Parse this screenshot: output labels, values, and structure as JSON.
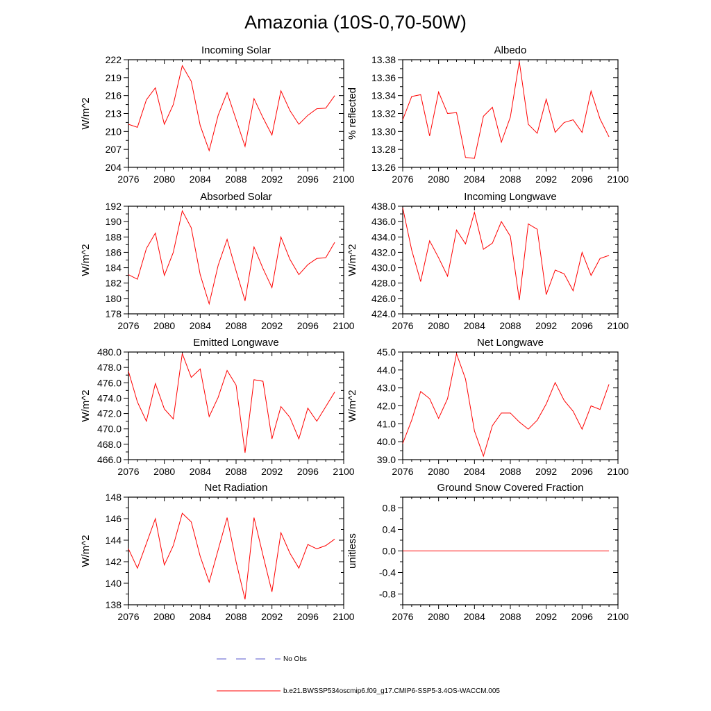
{
  "figure_title": "Amazonia (10S-0,70-50W)",
  "legend": {
    "obs_label": "No Obs",
    "obs_color": "#5555cc",
    "model_label": "b.e21.BWSSP534oscmip6.f09_g17.CMIP6-SSP5-3.4OS-WACCM.005",
    "model_color": "#ff0000"
  },
  "chart_data": [
    {
      "type": "line",
      "title": "Incoming Solar",
      "ylabel": "W/m^2",
      "xlim": [
        2076,
        2100
      ],
      "ylim": [
        204,
        222
      ],
      "xticks": [
        "2076",
        "2080",
        "2084",
        "2088",
        "2092",
        "2096",
        "2100"
      ],
      "yticks": [
        "204",
        "207",
        "210",
        "213",
        "216",
        "219",
        "222"
      ],
      "ytick_values": [
        204,
        207,
        210,
        213,
        216,
        219,
        222
      ],
      "x": [
        2076,
        2077,
        2078,
        2079,
        2080,
        2081,
        2082,
        2083,
        2084,
        2085,
        2086,
        2087,
        2088,
        2089,
        2090,
        2091,
        2092,
        2093,
        2094,
        2095,
        2096,
        2097,
        2098,
        2099
      ],
      "values": [
        211.2,
        210.7,
        215.3,
        217.3,
        211.2,
        214.5,
        221.0,
        218.4,
        211.0,
        206.8,
        212.7,
        216.5,
        212.0,
        207.5,
        215.5,
        212.3,
        209.4,
        216.8,
        213.5,
        211.2,
        212.7,
        213.8,
        213.9,
        216.0
      ]
    },
    {
      "type": "line",
      "title": "Albedo",
      "ylabel": "% reflected",
      "xlim": [
        2076,
        2100
      ],
      "ylim": [
        13.26,
        13.38
      ],
      "xticks": [
        "2076",
        "2080",
        "2084",
        "2088",
        "2092",
        "2096",
        "2100"
      ],
      "yticks": [
        "13.26",
        "13.28",
        "13.30",
        "13.32",
        "13.34",
        "13.36",
        "13.38"
      ],
      "ytick_values": [
        13.26,
        13.28,
        13.3,
        13.32,
        13.34,
        13.36,
        13.38
      ],
      "x": [
        2076,
        2077,
        2078,
        2079,
        2080,
        2081,
        2082,
        2083,
        2084,
        2085,
        2086,
        2087,
        2088,
        2089,
        2090,
        2091,
        2092,
        2093,
        2094,
        2095,
        2096,
        2097,
        2098,
        2099
      ],
      "values": [
        13.313,
        13.339,
        13.341,
        13.295,
        13.344,
        13.32,
        13.321,
        13.271,
        13.27,
        13.317,
        13.327,
        13.288,
        13.316,
        13.378,
        13.308,
        13.298,
        13.336,
        13.299,
        13.31,
        13.313,
        13.299,
        13.345,
        13.314,
        13.294
      ]
    },
    {
      "type": "line",
      "title": "Absorbed Solar",
      "ylabel": "W/m^2",
      "xlim": [
        2076,
        2100
      ],
      "ylim": [
        178,
        192
      ],
      "xticks": [
        "2076",
        "2080",
        "2084",
        "2088",
        "2092",
        "2096",
        "2100"
      ],
      "yticks": [
        "178",
        "180",
        "182",
        "184",
        "186",
        "188",
        "190",
        "192"
      ],
      "ytick_values": [
        178,
        180,
        182,
        184,
        186,
        188,
        190,
        192
      ],
      "x": [
        2076,
        2077,
        2078,
        2079,
        2080,
        2081,
        2082,
        2083,
        2084,
        2085,
        2086,
        2087,
        2088,
        2089,
        2090,
        2091,
        2092,
        2093,
        2094,
        2095,
        2096,
        2097,
        2098,
        2099
      ],
      "values": [
        183.1,
        182.5,
        186.5,
        188.5,
        183.0,
        186.0,
        191.4,
        189.2,
        183.1,
        179.3,
        184.3,
        187.7,
        183.6,
        179.7,
        186.7,
        183.9,
        181.4,
        188.0,
        185.1,
        183.1,
        184.4,
        185.2,
        185.3,
        187.3
      ]
    },
    {
      "type": "line",
      "title": "Incoming Longwave",
      "ylabel": "W/m^2",
      "xlim": [
        2076,
        2100
      ],
      "ylim": [
        424.0,
        438.0
      ],
      "xticks": [
        "2076",
        "2080",
        "2084",
        "2088",
        "2092",
        "2096",
        "2100"
      ],
      "yticks": [
        "424.0",
        "426.0",
        "428.0",
        "430.0",
        "432.0",
        "434.0",
        "436.0",
        "438.0"
      ],
      "ytick_values": [
        424,
        426,
        428,
        430,
        432,
        434,
        436,
        438
      ],
      "x": [
        2076,
        2077,
        2078,
        2079,
        2080,
        2081,
        2082,
        2083,
        2084,
        2085,
        2086,
        2087,
        2088,
        2089,
        2090,
        2091,
        2092,
        2093,
        2094,
        2095,
        2096,
        2097,
        2098,
        2099
      ],
      "values": [
        437.8,
        432.3,
        428.2,
        433.5,
        431.3,
        428.9,
        434.9,
        433.1,
        437.2,
        432.4,
        433.2,
        436.0,
        434.1,
        425.8,
        435.7,
        435.0,
        426.5,
        429.7,
        429.2,
        427.0,
        432.0,
        429.0,
        431.2,
        431.6
      ]
    },
    {
      "type": "line",
      "title": "Emitted Longwave",
      "ylabel": "W/m^2",
      "xlim": [
        2076,
        2100
      ],
      "ylim": [
        466.0,
        480.0
      ],
      "xticks": [
        "2076",
        "2080",
        "2084",
        "2088",
        "2092",
        "2096",
        "2100"
      ],
      "yticks": [
        "466.0",
        "468.0",
        "470.0",
        "472.0",
        "474.0",
        "476.0",
        "478.0",
        "480.0"
      ],
      "ytick_values": [
        466,
        468,
        470,
        472,
        474,
        476,
        478,
        480
      ],
      "x": [
        2076,
        2077,
        2078,
        2079,
        2080,
        2081,
        2082,
        2083,
        2084,
        2085,
        2086,
        2087,
        2088,
        2089,
        2090,
        2091,
        2092,
        2093,
        2094,
        2095,
        2096,
        2097,
        2098,
        2099
      ],
      "values": [
        477.5,
        473.5,
        471.0,
        475.9,
        472.6,
        471.3,
        479.8,
        476.7,
        477.8,
        471.6,
        474.1,
        477.6,
        475.7,
        466.9,
        476.4,
        476.2,
        468.7,
        472.9,
        471.5,
        468.7,
        472.7,
        471.0,
        472.9,
        474.8
      ]
    },
    {
      "type": "line",
      "title": "Net Longwave",
      "ylabel": "W/m^2",
      "xlim": [
        2076,
        2100
      ],
      "ylim": [
        39.0,
        45.0
      ],
      "xticks": [
        "2076",
        "2080",
        "2084",
        "2088",
        "2092",
        "2096",
        "2100"
      ],
      "yticks": [
        "39.0",
        "40.0",
        "41.0",
        "42.0",
        "43.0",
        "44.0",
        "45.0"
      ],
      "ytick_values": [
        39,
        40,
        41,
        42,
        43,
        44,
        45
      ],
      "x": [
        2076,
        2077,
        2078,
        2079,
        2080,
        2081,
        2082,
        2083,
        2084,
        2085,
        2086,
        2087,
        2088,
        2089,
        2090,
        2091,
        2092,
        2093,
        2094,
        2095,
        2096,
        2097,
        2098,
        2099
      ],
      "values": [
        39.9,
        41.2,
        42.8,
        42.4,
        41.3,
        42.4,
        44.9,
        43.5,
        40.6,
        39.2,
        40.9,
        41.6,
        41.6,
        41.1,
        40.7,
        41.2,
        42.1,
        43.3,
        42.3,
        41.7,
        40.7,
        42.0,
        41.8,
        43.2
      ]
    },
    {
      "type": "line",
      "title": "Net Radiation",
      "ylabel": "W/m^2",
      "xlim": [
        2076,
        2100
      ],
      "ylim": [
        138,
        148
      ],
      "xticks": [
        "2076",
        "2080",
        "2084",
        "2088",
        "2092",
        "2096",
        "2100"
      ],
      "yticks": [
        "138",
        "140",
        "142",
        "144",
        "146",
        "148"
      ],
      "ytick_values": [
        138,
        140,
        142,
        144,
        146,
        148
      ],
      "x": [
        2076,
        2077,
        2078,
        2079,
        2080,
        2081,
        2082,
        2083,
        2084,
        2085,
        2086,
        2087,
        2088,
        2089,
        2090,
        2091,
        2092,
        2093,
        2094,
        2095,
        2096,
        2097,
        2098,
        2099
      ],
      "values": [
        143.2,
        141.4,
        143.7,
        146.0,
        141.7,
        143.5,
        146.5,
        145.7,
        142.5,
        140.1,
        143.1,
        146.1,
        142.0,
        138.5,
        146.1,
        142.6,
        139.2,
        144.7,
        142.8,
        141.4,
        143.6,
        143.2,
        143.5,
        144.1
      ]
    },
    {
      "type": "line",
      "title": "Ground Snow Covered Fraction",
      "ylabel": "unitless",
      "xlim": [
        2076,
        2100
      ],
      "ylim": [
        -1.0,
        1.0
      ],
      "xticks": [
        "2076",
        "2080",
        "2084",
        "2088",
        "2092",
        "2096",
        "2100"
      ],
      "yticks": [
        "-0.8",
        "-0.4",
        "0.0",
        "0.4",
        "0.8"
      ],
      "ytick_values": [
        -0.8,
        -0.4,
        0.0,
        0.4,
        0.8
      ],
      "x": [
        2076,
        2077,
        2078,
        2079,
        2080,
        2081,
        2082,
        2083,
        2084,
        2085,
        2086,
        2087,
        2088,
        2089,
        2090,
        2091,
        2092,
        2093,
        2094,
        2095,
        2096,
        2097,
        2098,
        2099
      ],
      "values": [
        0,
        0,
        0,
        0,
        0,
        0,
        0,
        0,
        0,
        0,
        0,
        0,
        0,
        0,
        0,
        0,
        0,
        0,
        0,
        0,
        0,
        0,
        0,
        0
      ]
    }
  ]
}
